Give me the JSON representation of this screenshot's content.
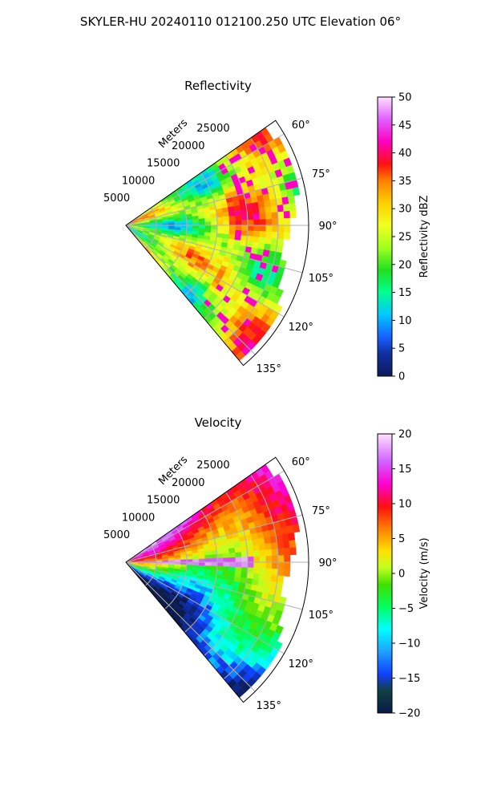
{
  "figure": {
    "suptitle": "SKYLER-HU  20240110  012100.250 UTC Elevation 06°"
  },
  "chart_data": [
    {
      "type": "heatmap",
      "projection": "polar-sector",
      "title": "Reflectivity",
      "radial_axis_label": "Meters",
      "radial_tick_labels": [
        "5000",
        "10000",
        "15000",
        "20000",
        "25000"
      ],
      "radial_ticks": [
        5000,
        10000,
        15000,
        20000,
        25000
      ],
      "radial_range": [
        0,
        30000
      ],
      "azimuth_tick_labels": [
        "60°",
        "75°",
        "90°",
        "105°",
        "120°",
        "135°"
      ],
      "azimuth_ticks": [
        60,
        75,
        90,
        105,
        120,
        135
      ],
      "azimuth_range": [
        55,
        140
      ],
      "grid": true,
      "colorbar": {
        "label": "Reflectivity dBZ",
        "range": [
          0,
          50
        ],
        "tick_labels": [
          "0",
          "5",
          "10",
          "15",
          "20",
          "25",
          "30",
          "35",
          "40",
          "45",
          "50"
        ],
        "ticks": [
          0,
          5,
          10,
          15,
          20,
          25,
          30,
          35,
          40,
          45,
          50
        ],
        "colormap": "pyart_HomeyerRainbow-like",
        "placement": "right"
      },
      "field_description_values": {
        "dominant_range_dbz": [
          20,
          32
        ],
        "max_observed_dbz": 45
      }
    },
    {
      "type": "heatmap",
      "projection": "polar-sector",
      "title": "Velocity",
      "radial_axis_label": "Meters",
      "radial_tick_labels": [
        "5000",
        "10000",
        "15000",
        "20000",
        "25000"
      ],
      "radial_ticks": [
        5000,
        10000,
        15000,
        20000,
        25000
      ],
      "radial_range": [
        0,
        30000
      ],
      "azimuth_tick_labels": [
        "60°",
        "75°",
        "90°",
        "105°",
        "120°",
        "135°"
      ],
      "azimuth_ticks": [
        60,
        75,
        90,
        105,
        120,
        135
      ],
      "azimuth_range": [
        55,
        140
      ],
      "grid": true,
      "colorbar": {
        "label": "Velocity (m/s)",
        "range": [
          -20,
          20
        ],
        "tick_labels": [
          "−20",
          "−15",
          "−10",
          "−5",
          "0",
          "5",
          "10",
          "15",
          "20"
        ],
        "ticks": [
          -20,
          -15,
          -10,
          -5,
          0,
          5,
          10,
          15,
          20
        ],
        "colormap": "pyart_BuDRd-like",
        "placement": "right"
      },
      "field_description_values": {
        "range_ms": [
          -15,
          15
        ]
      }
    }
  ]
}
